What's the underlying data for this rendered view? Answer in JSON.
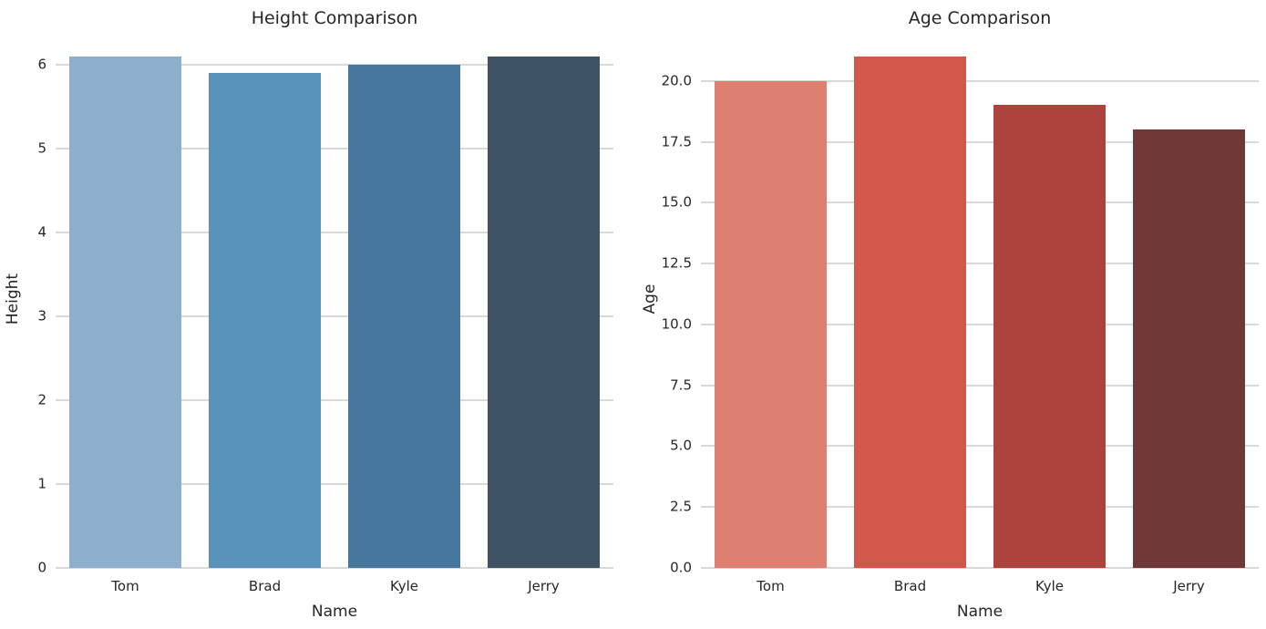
{
  "figure": {
    "background": "#ffffff",
    "grid_color": "#d9d9d9",
    "text_color": "#262626"
  },
  "chart_data": [
    {
      "type": "bar",
      "title": "Height Comparison",
      "xlabel": "Name",
      "ylabel": "Height",
      "categories": [
        "Tom",
        "Brad",
        "Kyle",
        "Jerry"
      ],
      "values": [
        6.1,
        5.9,
        6.0,
        6.1
      ],
      "bar_colors": [
        "#8dafcb",
        "#5992ba",
        "#45789c",
        "#3d5365"
      ],
      "ylim": [
        0,
        6.4
      ],
      "yticks": [
        {
          "v": 0,
          "label": "0"
        },
        {
          "v": 1,
          "label": "1"
        },
        {
          "v": 2,
          "label": "2"
        },
        {
          "v": 3,
          "label": "3"
        },
        {
          "v": 4,
          "label": "4"
        },
        {
          "v": 5,
          "label": "5"
        },
        {
          "v": 6,
          "label": "6"
        }
      ],
      "grid": "horizontal",
      "legend": "none"
    },
    {
      "type": "bar",
      "title": "Age Comparison",
      "xlabel": "Name",
      "ylabel": "Age",
      "categories": [
        "Tom",
        "Brad",
        "Kyle",
        "Jerry"
      ],
      "values": [
        20,
        21,
        19,
        18
      ],
      "bar_colors": [
        "#dd8070",
        "#d05749",
        "#ac433c",
        "#6e3937"
      ],
      "ylim": [
        0,
        22.05
      ],
      "yticks": [
        {
          "v": 0,
          "label": "0.0"
        },
        {
          "v": 2.5,
          "label": "2.5"
        },
        {
          "v": 5,
          "label": "5.0"
        },
        {
          "v": 7.5,
          "label": "7.5"
        },
        {
          "v": 10,
          "label": "10.0"
        },
        {
          "v": 12.5,
          "label": "12.5"
        },
        {
          "v": 15,
          "label": "15.0"
        },
        {
          "v": 17.5,
          "label": "17.5"
        },
        {
          "v": 20,
          "label": "20.0"
        }
      ],
      "grid": "horizontal",
      "legend": "none"
    }
  ]
}
